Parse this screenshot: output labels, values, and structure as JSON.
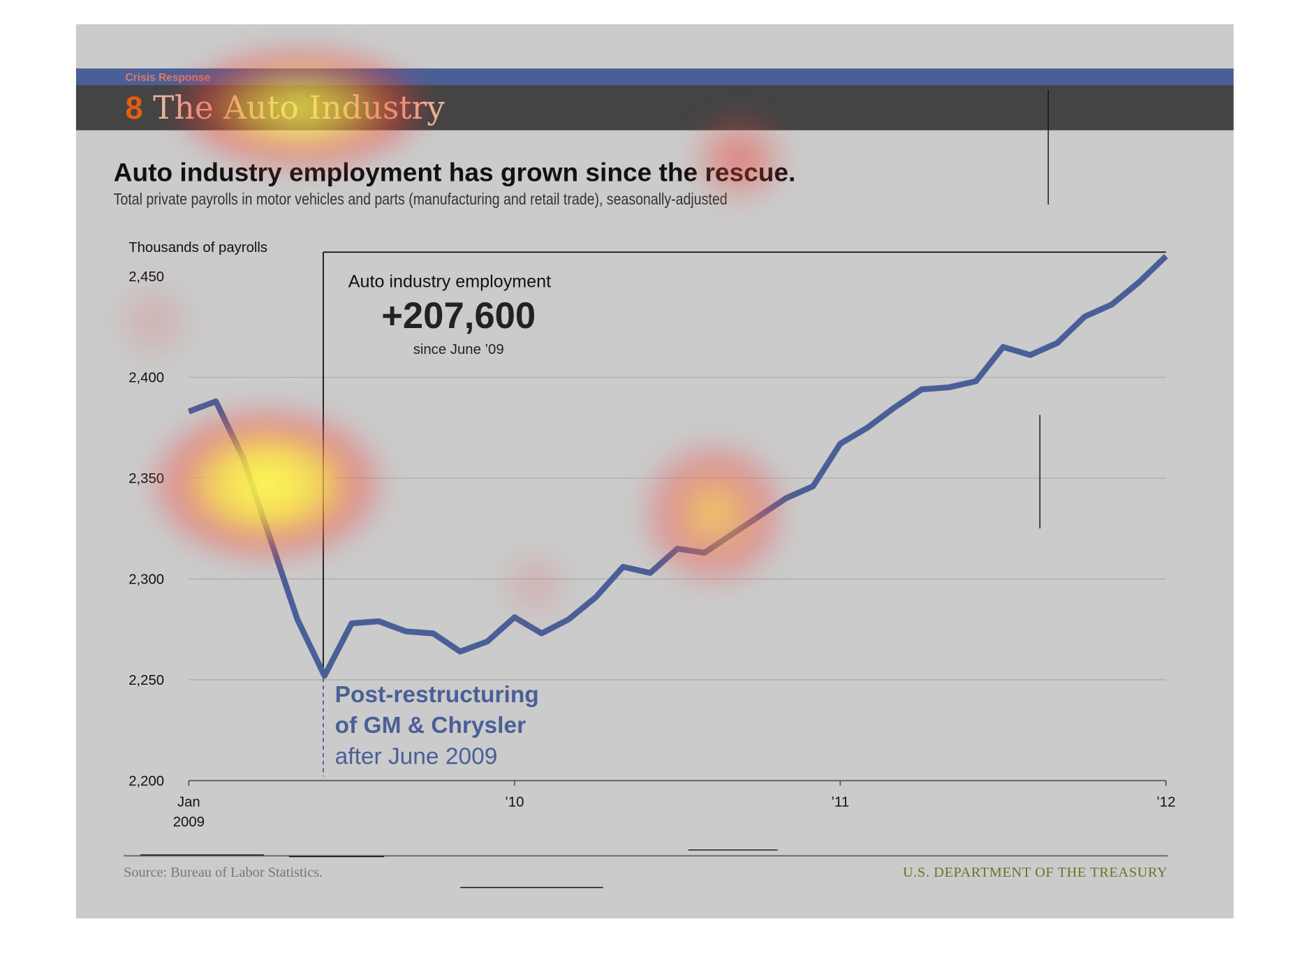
{
  "header": {
    "kicker": "Crisis Response",
    "section_number": "8",
    "section_title": "The Auto Industry"
  },
  "headline": "Auto industry employment has grown since the rescue.",
  "subtitle": "Total private payrolls in motor vehicles and parts (manufacturing and retail trade), seasonally-adjusted",
  "annotation": {
    "title": "Auto industry employment",
    "value": "+207,600",
    "since": "since June ’09"
  },
  "restructuring": {
    "line1": "Post-restructuring",
    "line2": "of GM & Chrysler",
    "line3": "after June 2009"
  },
  "footer": {
    "source": "Source: Bureau of Labor Statistics.",
    "agency": "U.S. DEPARTMENT OF THE TREASURY"
  },
  "colors": {
    "line": "#4a5f97",
    "accent": "#e35d10",
    "panel": "#cbcbcb"
  },
  "chart_data": {
    "type": "line",
    "title": "Auto industry employment has grown since the rescue.",
    "ylabel": "Thousands of payrolls",
    "xlabel": "",
    "ylim": [
      2200,
      2460
    ],
    "yticks": [
      2200,
      2250,
      2300,
      2350,
      2400,
      2450
    ],
    "ytick_labels": [
      "2,200",
      "2,250",
      "2,300",
      "2,350",
      "2,400",
      "2,450"
    ],
    "xticks": [
      0,
      12,
      24,
      36
    ],
    "xtick_labels": [
      "Jan\n2009",
      "’10",
      "’11",
      "’12"
    ],
    "grid": true,
    "x_unit": "months since Jan 2009",
    "series": [
      {
        "name": "Auto industry employment",
        "values": [
          2383,
          2388,
          2360,
          2320,
          2280,
          2252,
          2278,
          2279,
          2274,
          2273,
          2264,
          2269,
          2281,
          2273,
          2280,
          2291,
          2306,
          2303,
          2315,
          2313,
          2322,
          2331,
          2340,
          2346,
          2367,
          2375,
          2385,
          2394,
          2395,
          2398,
          2415,
          2411,
          2417,
          2430,
          2436,
          2447,
          2460
        ]
      }
    ],
    "marker_month": 5
  }
}
